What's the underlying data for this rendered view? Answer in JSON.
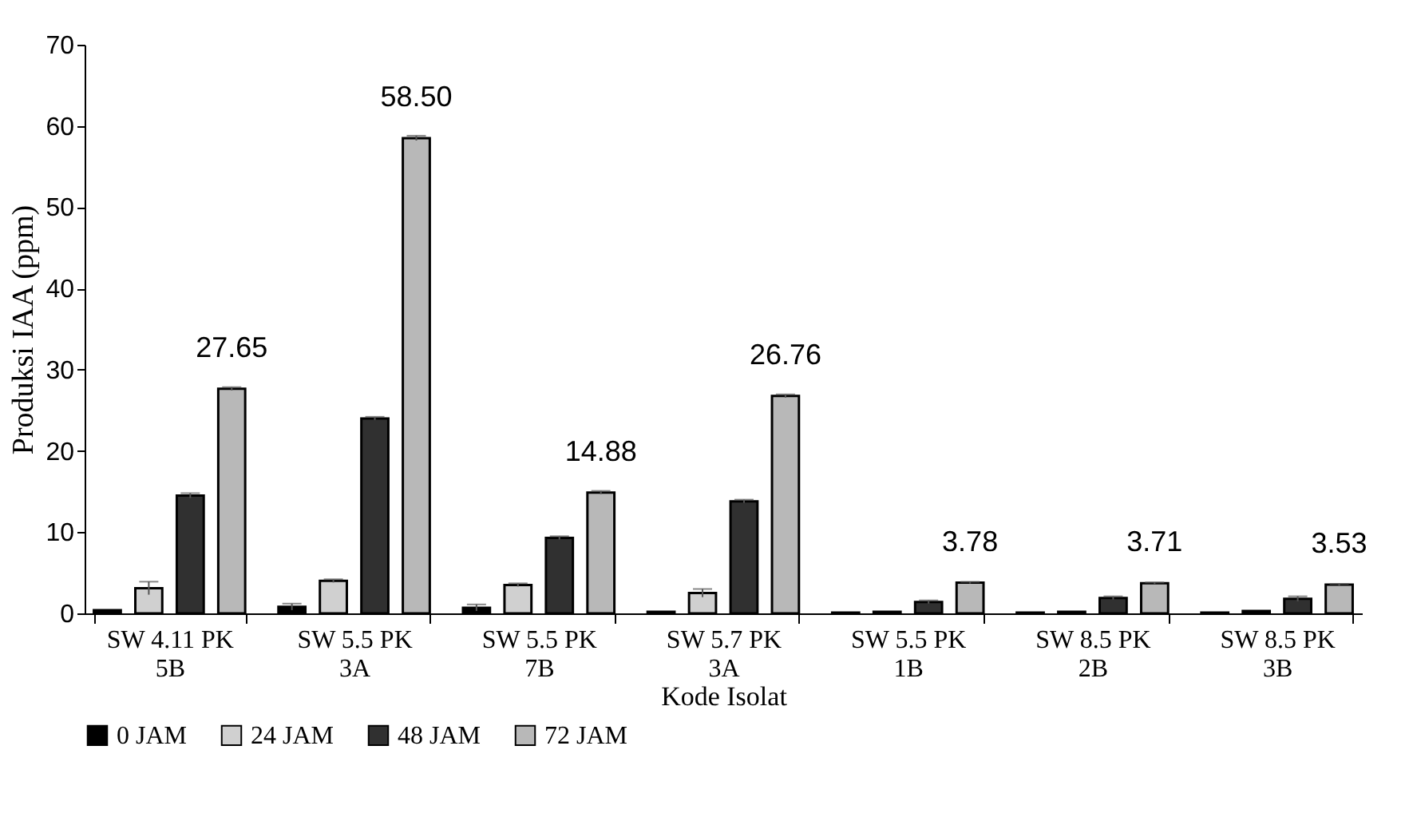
{
  "chart_data": {
    "type": "bar",
    "xlabel": "Kode Isolat",
    "ylabel": "Produksi IAA (ppm)",
    "categories": [
      "SW 4.11 PK 5B",
      "SW 5.5 PK 3A",
      "SW 5.5 PK 7B",
      "SW 5.7 PK 3A",
      "SW 5.5 PK 1B",
      "SW 8.5 PK 2B",
      "SW 8.5 PK 3B"
    ],
    "series": [
      {
        "name": "0 JAM",
        "color": "#000000",
        "values": [
          0.4,
          0.8,
          0.7,
          0.2,
          0.1,
          0.1,
          0.1
        ],
        "errors": [
          null,
          0.4,
          0.4,
          null,
          null,
          null,
          null
        ]
      },
      {
        "name": "24 JAM",
        "color": "#d0d0d0",
        "values": [
          3.1,
          4.0,
          3.5,
          2.5,
          0.2,
          0.2,
          0.3
        ],
        "errors": [
          0.8,
          0.2,
          0.2,
          0.5,
          null,
          null,
          null
        ]
      },
      {
        "name": "48 JAM",
        "color": "#303030",
        "values": [
          14.5,
          24.0,
          9.3,
          13.8,
          1.4,
          1.9,
          1.8
        ],
        "errors": [
          0.3,
          0.2,
          0.2,
          0.2,
          0.2,
          0.2,
          0.3
        ]
      },
      {
        "name": "72 JAM",
        "color": "#b8b8b8",
        "values": [
          27.65,
          58.5,
          14.88,
          26.76,
          3.78,
          3.71,
          3.53
        ],
        "errors": [
          0.2,
          0.3,
          0.2,
          0.2,
          0.1,
          0.1,
          0.1
        ],
        "value_labels": [
          "27.65",
          "58.50",
          "14.88",
          "26.76",
          "3.78",
          "3.71",
          "3.53"
        ]
      }
    ],
    "ylim": [
      0,
      70
    ],
    "yticks": [
      0,
      10,
      20,
      30,
      40,
      50,
      60,
      70
    ],
    "legend": "bottom"
  }
}
